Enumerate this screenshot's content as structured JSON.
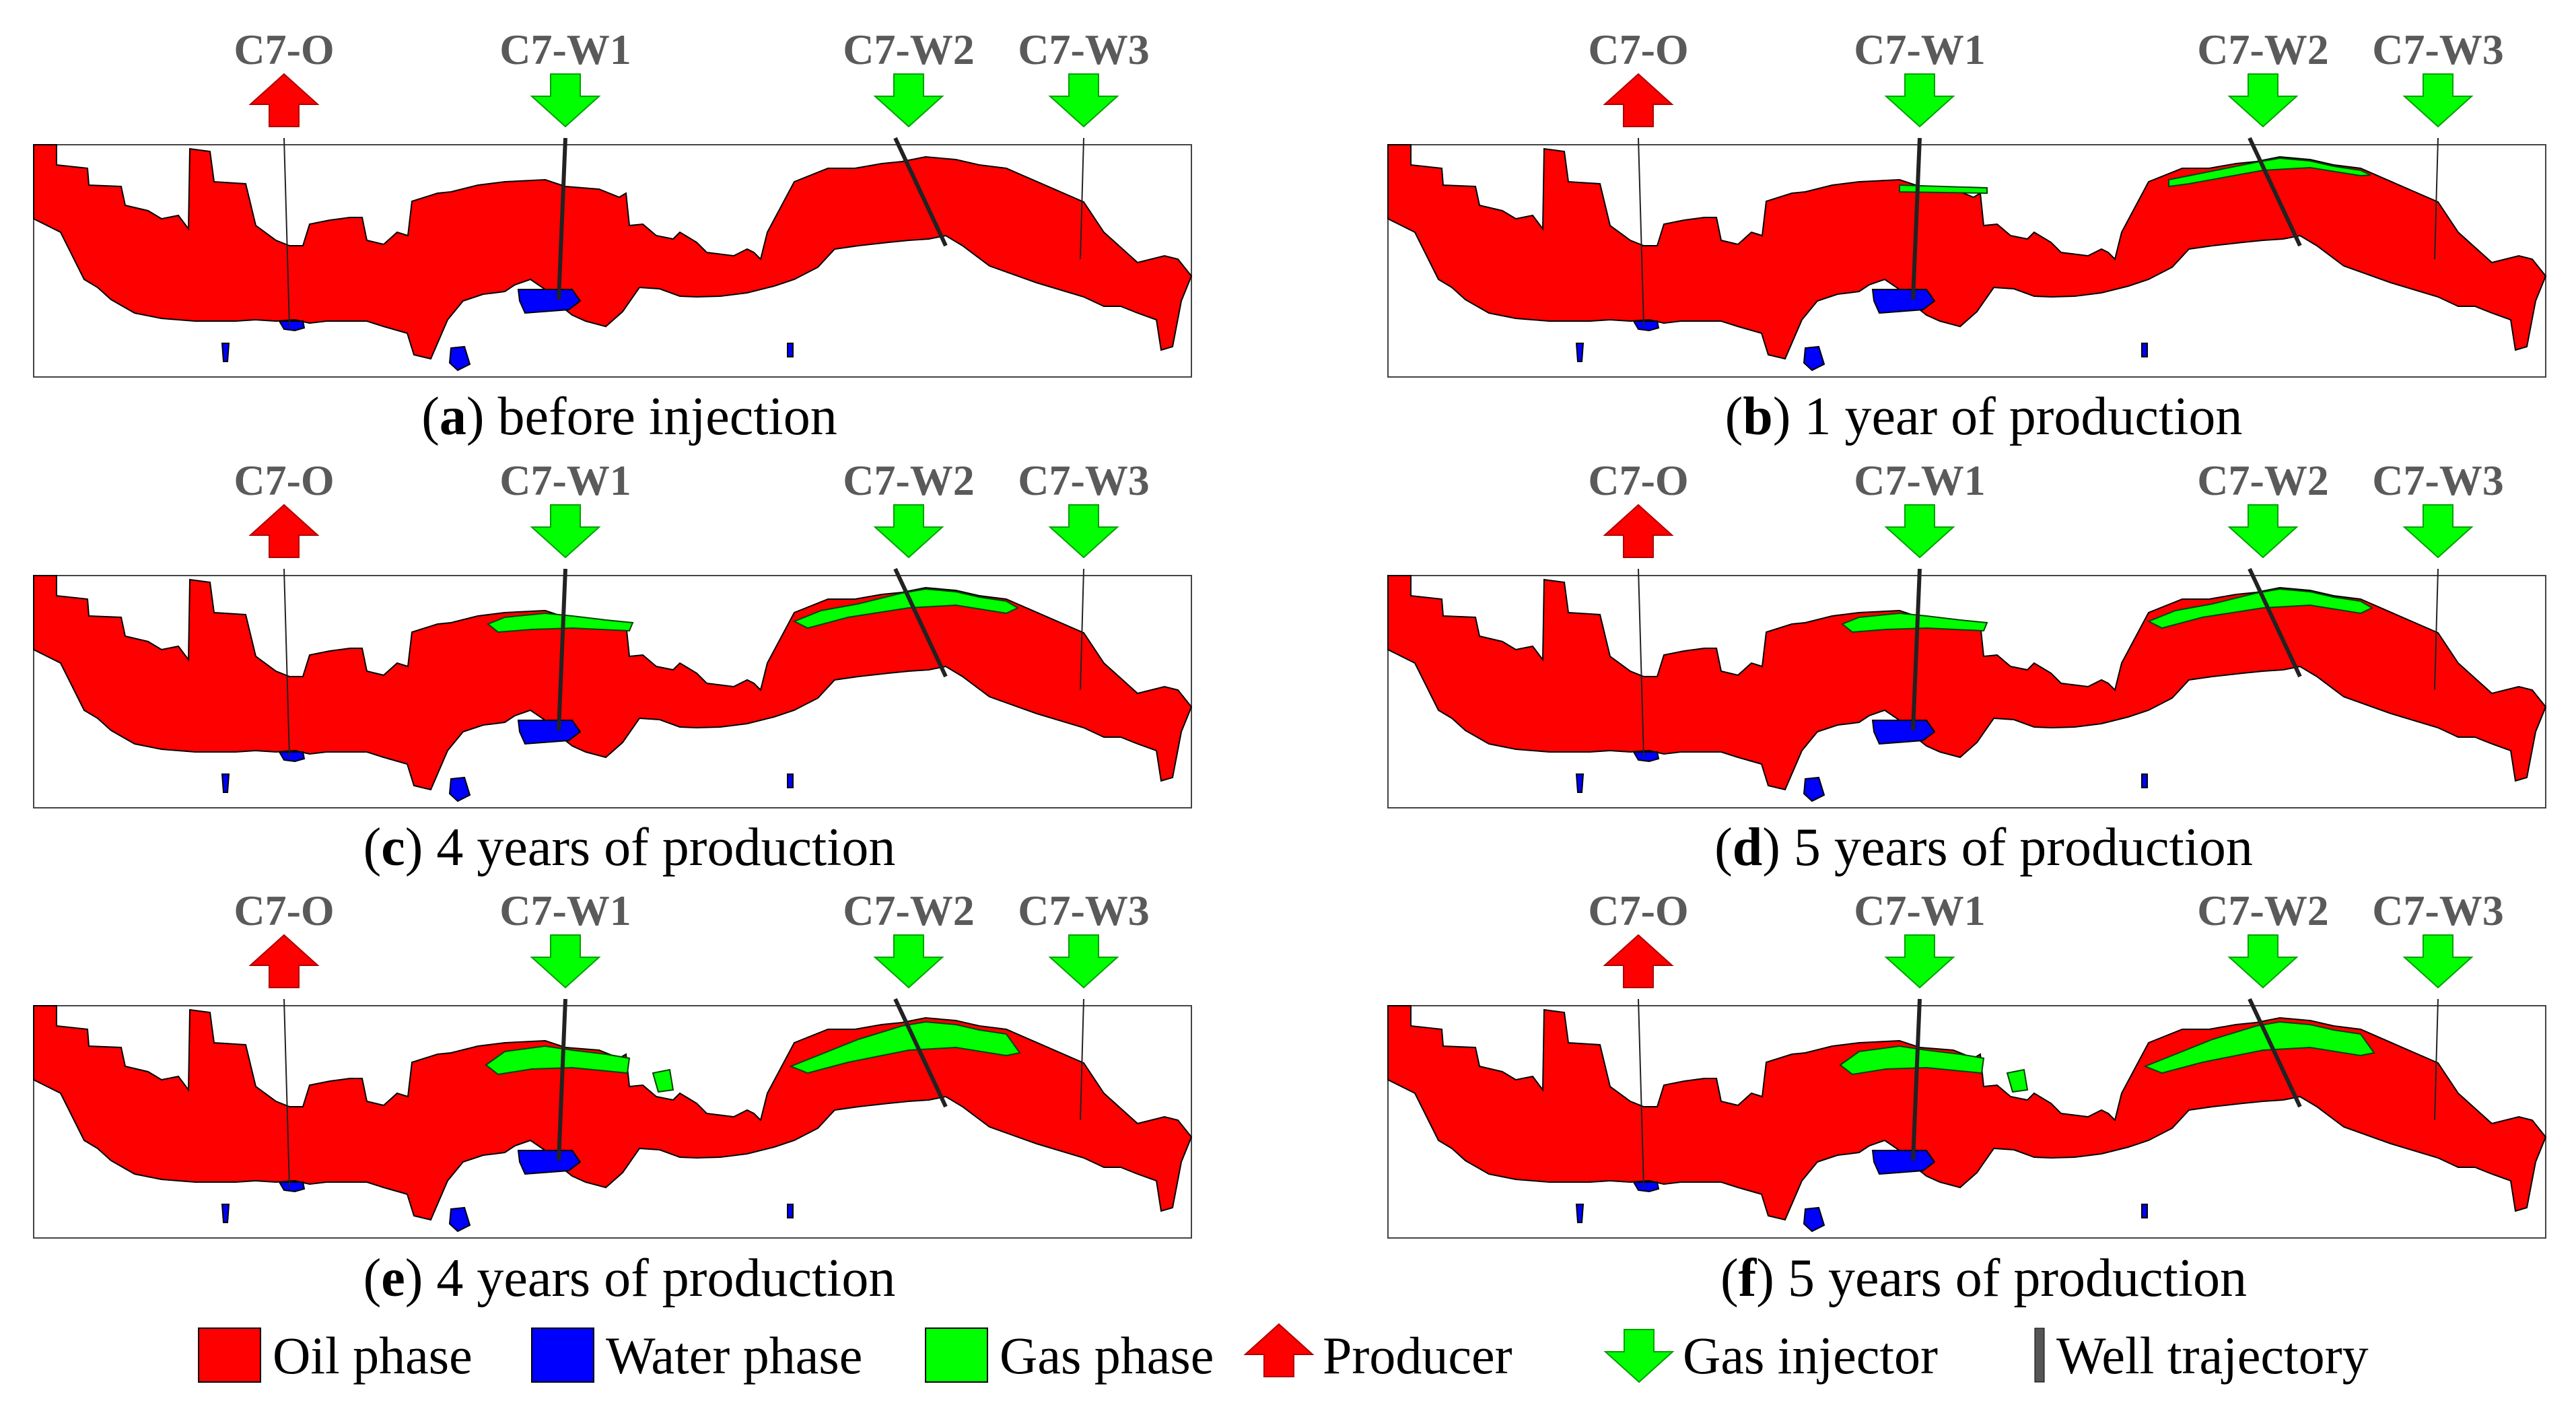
{
  "panels": [
    {
      "letter": "a",
      "caption": "before injection",
      "gas_level": 0
    },
    {
      "letter": "b",
      "caption": "1 year of production",
      "gas_level": 1
    },
    {
      "letter": "c",
      "caption": "4 years of production",
      "gas_level": 2
    },
    {
      "letter": "d",
      "caption": "5 years of production",
      "gas_level": 2
    },
    {
      "letter": "e",
      "caption": "4 years of production",
      "gas_level": 3
    },
    {
      "letter": "f",
      "caption": "5 years of production",
      "gas_level": 3
    }
  ],
  "wells": [
    {
      "name": "C7-O",
      "type": "producer"
    },
    {
      "name": "C7-W1",
      "type": "injector"
    },
    {
      "name": "C7-W2",
      "type": "injector"
    },
    {
      "name": "C7-W3",
      "type": "injector"
    }
  ],
  "legend": [
    {
      "label": "Oil phase",
      "kind": "swatch",
      "color": "#ff0000"
    },
    {
      "label": "Water phase",
      "kind": "swatch",
      "color": "#0000ff"
    },
    {
      "label": "Gas phase",
      "kind": "swatch",
      "color": "#00ff00"
    },
    {
      "label": "Producer",
      "kind": "producer-arrow",
      "color": "#ff0000"
    },
    {
      "label": "Gas injector",
      "kind": "injector-arrow",
      "color": "#00ff00"
    },
    {
      "label": "Well trajectory",
      "kind": "trajectory",
      "color": "#555555"
    }
  ],
  "colors": {
    "oil": "#ff0000",
    "water": "#0000ff",
    "gas": "#00ff00",
    "well_label": "#5a5a5a"
  }
}
